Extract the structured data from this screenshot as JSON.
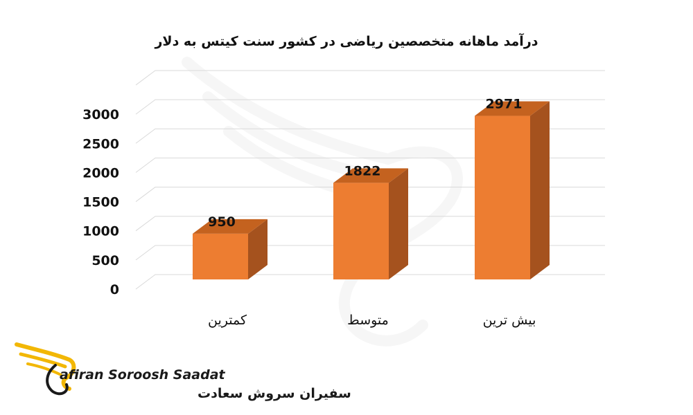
{
  "chart_data": {
    "type": "bar",
    "title": "درآمد ماهانه متخصصین ریاضی در کشور سنت کیتس به دلار",
    "categories": [
      "کمترین",
      "متوسط",
      "بیش ترین"
    ],
    "values": [
      950,
      1822,
      2971
    ],
    "data_labels": [
      "950",
      "1822",
      "2971"
    ],
    "ylim": [
      0,
      3000
    ],
    "yticks": [
      "0",
      "500",
      "1000",
      "1500",
      "2000",
      "2500",
      "3000"
    ],
    "grid": true,
    "legend": "none",
    "style": "3d-column"
  },
  "colors": {
    "bar_front": "#ED7D31",
    "bar_side": "#A5521E",
    "bar_top": "#C4621F",
    "grid": "#d9d9d9",
    "logo_gold": "#F2B705"
  },
  "brand": {
    "name_en": "afiran Soroosh Saadat",
    "name_fa": "سفیران سروش سعادت",
    "logo_icon": "phoenix-logo-icon"
  }
}
